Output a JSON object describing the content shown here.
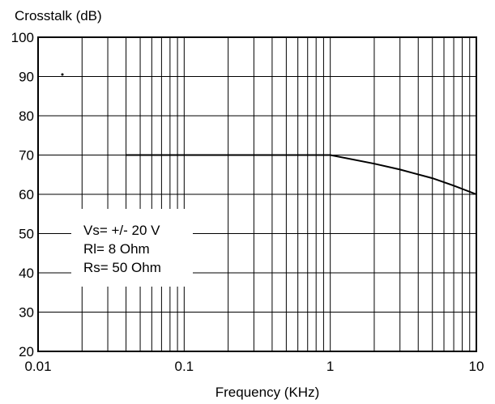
{
  "chart_data": {
    "type": "line",
    "title": "",
    "ylabel": "Crosstalk (dB)",
    "xlabel": "Frequency (KHz)",
    "xscale": "log",
    "xlim": [
      0.01,
      10
    ],
    "ylim": [
      20,
      100
    ],
    "grid": true,
    "x_ticks": [
      {
        "value": 0.01,
        "label": "0.01"
      },
      {
        "value": 0.1,
        "label": "0.1"
      },
      {
        "value": 1,
        "label": "1"
      },
      {
        "value": 10,
        "label": "10"
      }
    ],
    "y_ticks": [
      {
        "value": 20,
        "label": "20"
      },
      {
        "value": 30,
        "label": "30"
      },
      {
        "value": 40,
        "label": "40"
      },
      {
        "value": 50,
        "label": "50"
      },
      {
        "value": 60,
        "label": "60"
      },
      {
        "value": 70,
        "label": "70"
      },
      {
        "value": 80,
        "label": "80"
      },
      {
        "value": 90,
        "label": "90"
      },
      {
        "value": 100,
        "label": "100"
      }
    ],
    "series": [
      {
        "x": [
          0.04,
          0.1,
          0.5,
          1,
          2,
          3,
          5,
          7,
          10
        ],
        "y": [
          70,
          70,
          70,
          70,
          67.8,
          66.3,
          64.1,
          62.2,
          60
        ]
      }
    ],
    "annotations": [
      "Vs= +/- 20 V",
      "Rl= 8 Ohm",
      "Rs= 50 Ohm"
    ],
    "colors": {
      "line": "#000000",
      "grid": "#000000",
      "background": "#ffffff"
    }
  }
}
